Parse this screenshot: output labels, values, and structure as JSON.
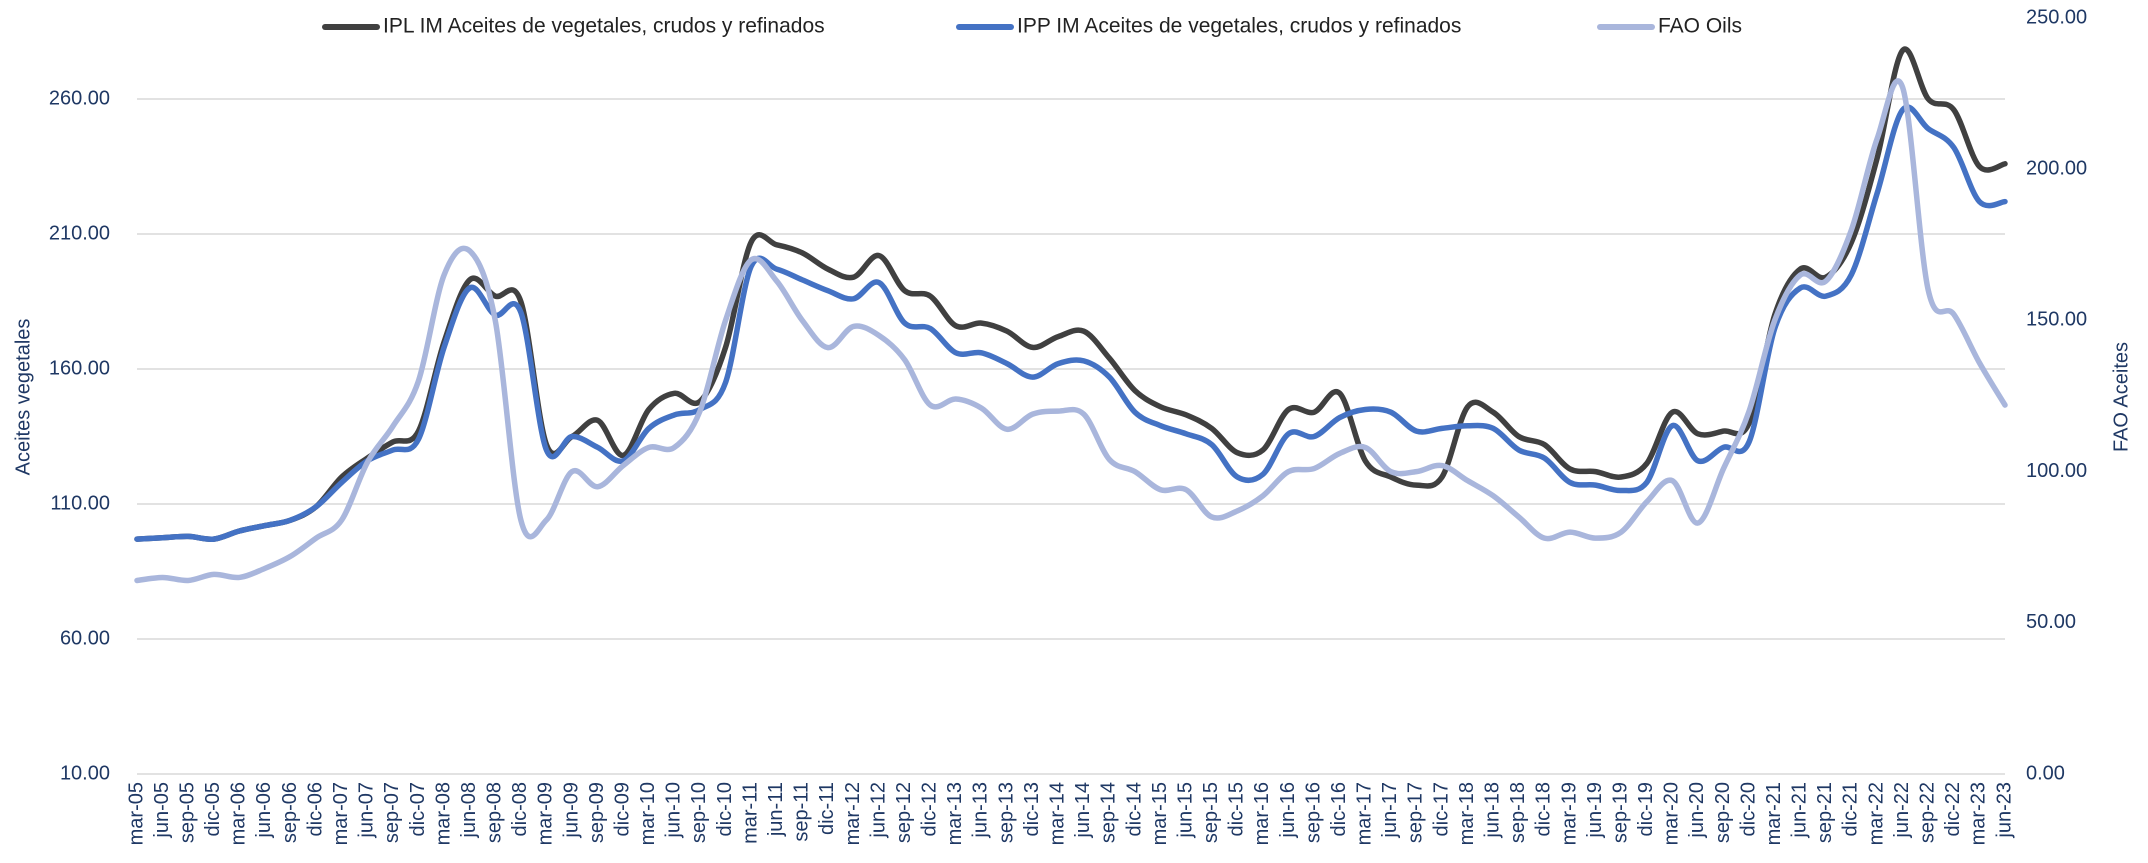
{
  "chart_data": {
    "type": "line",
    "categories": [
      "mar-05",
      "jun-05",
      "sep-05",
      "dic-05",
      "mar-06",
      "jun-06",
      "sep-06",
      "dic-06",
      "mar-07",
      "jun-07",
      "sep-07",
      "dic-07",
      "mar-08",
      "jun-08",
      "sep-08",
      "dic-08",
      "mar-09",
      "jun-09",
      "sep-09",
      "dic-09",
      "mar-10",
      "jun-10",
      "sep-10",
      "dic-10",
      "mar-11",
      "jun-11",
      "sep-11",
      "dic-11",
      "mar-12",
      "jun-12",
      "sep-12",
      "dic-12",
      "mar-13",
      "jun-13",
      "sep-13",
      "dic-13",
      "mar-14",
      "jun-14",
      "sep-14",
      "dic-14",
      "mar-15",
      "jun-15",
      "sep-15",
      "dic-15",
      "mar-16",
      "jun-16",
      "sep-16",
      "dic-16",
      "mar-17",
      "jun-17",
      "sep-17",
      "dic-17",
      "mar-18",
      "jun-18",
      "sep-18",
      "dic-18",
      "mar-19",
      "jun-19",
      "sep-19",
      "dic-19",
      "mar-20",
      "jun-20",
      "sep-20",
      "dic-20",
      "mar-21",
      "jun-21",
      "sep-21",
      "dic-21",
      "mar-22",
      "jun-22",
      "sep-22",
      "dic-22",
      "mar-23",
      "jun-23"
    ],
    "series": [
      {
        "name": "IPL IM Aceites de vegetales, crudos y refinados",
        "color": "#404040",
        "values": [
          97,
          97.5,
          98,
          97,
          100,
          102,
          104,
          109,
          120,
          127,
          133,
          137,
          170,
          193,
          187,
          185,
          132,
          135,
          141,
          128,
          145,
          151,
          148,
          168,
          207,
          206,
          203,
          197,
          194,
          202,
          189,
          187,
          176,
          177,
          174,
          168,
          172,
          174,
          164,
          152,
          146,
          143,
          138,
          129,
          130,
          145,
          144,
          151,
          126,
          120,
          117,
          120,
          146,
          144,
          135,
          132,
          123,
          122,
          120,
          125,
          144,
          136,
          137,
          140,
          180,
          197,
          194,
          207,
          238,
          278,
          260,
          256,
          235,
          236
        ]
      },
      {
        "name": "IPP IM Aceites de vegetales, crudos y refinados",
        "color": "#4472c4",
        "values": [
          97,
          97.5,
          98,
          97,
          100,
          102,
          104,
          109,
          118,
          126,
          130,
          134,
          168,
          190,
          180,
          181,
          130,
          135,
          131,
          126,
          138,
          143,
          145,
          155,
          198,
          197,
          193,
          189,
          186,
          192,
          177,
          175,
          166,
          166,
          162,
          157,
          162,
          163,
          157,
          144,
          139,
          136,
          132,
          120,
          121,
          136,
          135,
          142,
          145,
          144,
          137,
          138,
          139,
          138,
          130,
          127,
          118,
          117,
          115,
          118,
          139,
          126,
          131,
          133,
          175,
          190,
          187,
          195,
          225,
          256,
          249,
          242,
          222,
          222
        ]
      },
      {
        "name": "FAO Oils",
        "color": "#a9b6dc",
        "axis": "y2",
        "values": [
          64,
          65,
          64,
          66,
          65,
          68,
          72,
          78,
          84,
          103,
          115,
          130,
          165,
          173,
          150,
          84,
          84,
          100,
          95,
          102,
          108,
          108,
          120,
          150,
          170,
          163,
          150,
          141,
          148,
          145,
          137,
          122,
          124,
          121,
          114,
          119,
          120,
          119,
          104,
          100,
          94,
          94,
          85,
          87,
          92,
          100,
          101,
          106,
          108,
          100,
          100,
          102,
          97,
          92,
          85,
          78,
          80,
          78,
          80,
          90,
          97,
          83,
          101,
          120,
          150,
          165,
          163,
          180,
          210,
          227,
          160,
          152,
          136,
          122
        ]
      }
    ],
    "ylabel": "Aceites vegetales",
    "y2label": "FAO Aceites",
    "ylim": [
      10,
      290
    ],
    "yticks": [
      {
        "value": 10,
        "label": "10.00"
      },
      {
        "value": 60,
        "label": "60.00"
      },
      {
        "value": 110,
        "label": "110.00"
      },
      {
        "value": 160,
        "label": "160.00"
      },
      {
        "value": 210,
        "label": "210.00"
      },
      {
        "value": 260,
        "label": "260.00"
      }
    ],
    "y2lim": [
      0,
      250
    ],
    "y2ticks": [
      {
        "value": 0,
        "label": "0.00"
      },
      {
        "value": 50,
        "label": "50.00"
      },
      {
        "value": 100,
        "label": "100.00"
      },
      {
        "value": 150,
        "label": "150.00"
      },
      {
        "value": 200,
        "label": "200.00"
      },
      {
        "value": 250,
        "label": "250.00"
      }
    ],
    "grid": true,
    "legend": "top"
  }
}
